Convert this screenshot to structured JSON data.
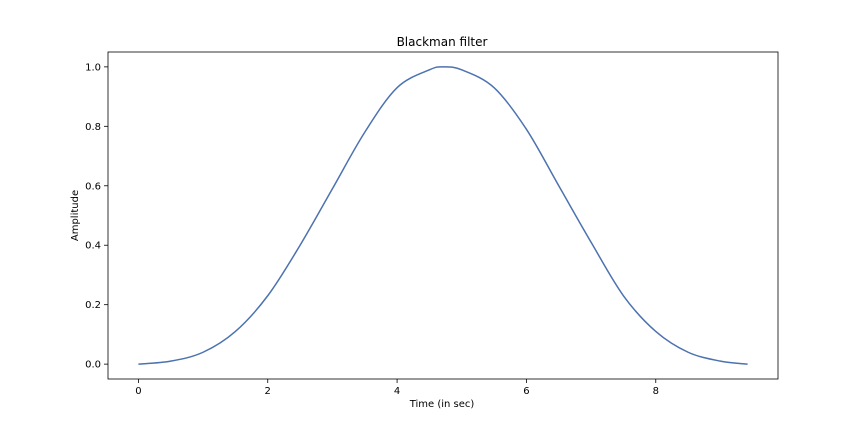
{
  "chart_data": {
    "type": "line",
    "title": "Blackman filter",
    "xlabel": "Time (in sec)",
    "ylabel": "Amplitude",
    "xlim": [
      -0.47,
      9.89
    ],
    "ylim": [
      -0.05,
      1.05
    ],
    "xticks": [
      0,
      2,
      4,
      6,
      8
    ],
    "xtick_labels": [
      "0",
      "2",
      "4",
      "6",
      "8"
    ],
    "yticks": [
      0.0,
      0.2,
      0.4,
      0.6,
      0.8,
      1.0
    ],
    "ytick_labels": [
      "0.0",
      "0.2",
      "0.4",
      "0.6",
      "0.8",
      "1.0"
    ],
    "grid": false,
    "series": [
      {
        "color": "#4c72b0",
        "x": [
          0,
          0.5,
          1.0,
          1.5,
          2.0,
          2.5,
          3.0,
          3.5,
          4.0,
          4.5,
          4.71,
          5.0,
          5.5,
          6.0,
          6.5,
          7.0,
          7.5,
          8.0,
          8.5,
          9.0,
          9.42
        ],
        "y": [
          0.0,
          0.01,
          0.04,
          0.11,
          0.23,
          0.4,
          0.59,
          0.78,
          0.93,
          0.99,
          1.0,
          0.99,
          0.93,
          0.79,
          0.6,
          0.41,
          0.23,
          0.11,
          0.04,
          0.01,
          0.0
        ]
      }
    ]
  }
}
